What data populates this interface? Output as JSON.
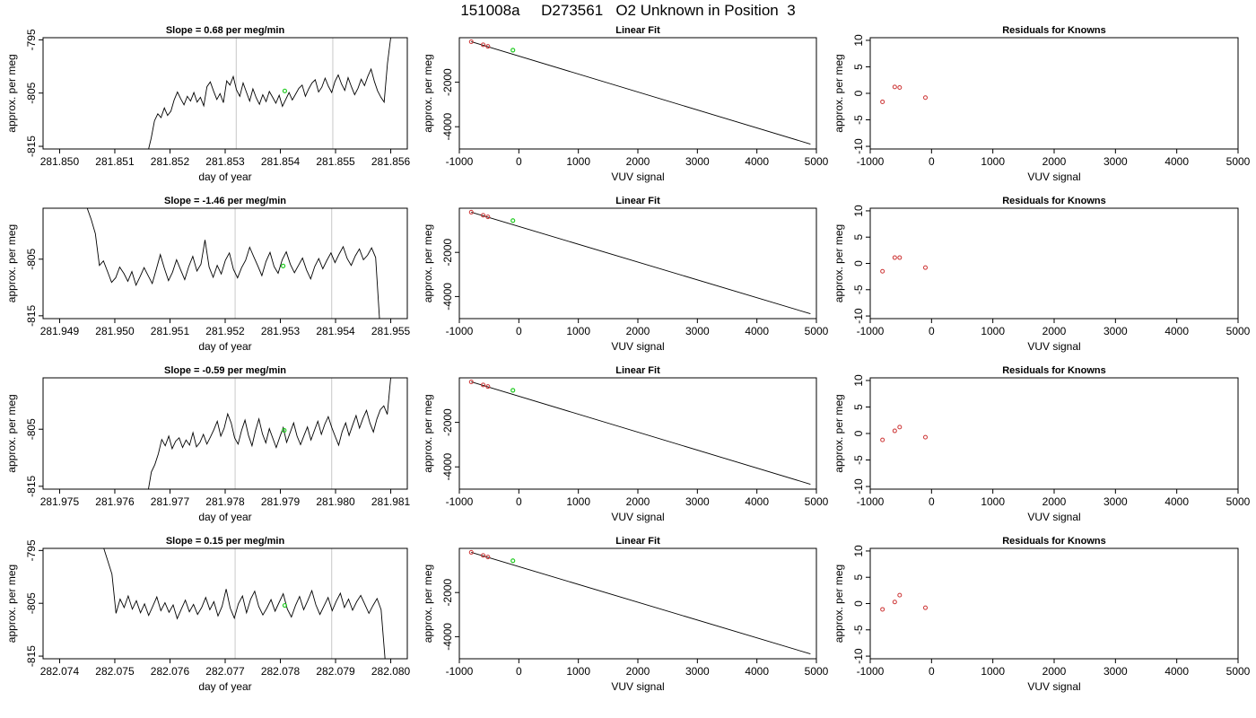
{
  "main_title": "151008a     D273561   O2 Unknown in Position  3",
  "chart_data": [
    {
      "type": "line",
      "title": "Slope =  0.68  per meg/min",
      "xlabel": "day of year",
      "ylabel": "approx. per meg",
      "xlim": [
        281.8497,
        281.8563
      ],
      "ylim": [
        -815.5,
        -794.6
      ],
      "xticks": [
        "281.850",
        "281.851",
        "281.852",
        "281.853",
        "281.854",
        "281.855",
        "281.856"
      ],
      "xtick_values": [
        281.85,
        281.851,
        281.852,
        281.853,
        281.854,
        281.855,
        281.856
      ],
      "yticks": [
        "-815",
        "-805",
        "-795"
      ],
      "ytick_values": [
        -815,
        -805,
        -795
      ],
      "vlines": [
        281.8532,
        281.85495
      ],
      "series": [
        {
          "x_start": 281.8516,
          "x_end": 281.856,
          "start": -816,
          "values": [
            -816,
            -813.5,
            -810.2,
            -808.9,
            -809.6,
            -807.8,
            -809.2,
            -808.4,
            -806.3,
            -804.8,
            -806.1,
            -807.2,
            -805.6,
            -806.5,
            -804.9,
            -806.7,
            -805.8,
            -807.4,
            -803.8,
            -802.9,
            -804.6,
            -806.2,
            -805.1,
            -806.8,
            -802.7,
            -803.5,
            -801.9,
            -804.4,
            -805.6,
            -803.1,
            -804.8,
            -806.5,
            -804.2,
            -805.9,
            -807.1,
            -805.3,
            -806.6,
            -804.7,
            -805.8,
            -806.9,
            -805.4,
            -807.5,
            -806.2,
            -804.9,
            -806.3,
            -805.2,
            -804.1,
            -803.5,
            -805.6,
            -804.2,
            -803.1,
            -802.5,
            -804.8,
            -803.9,
            -802.2,
            -803.7,
            -804.9,
            -802.8,
            -801.6,
            -803.3,
            -804.5,
            -802.1,
            -803.8,
            -805.3,
            -804.1,
            -802.4,
            -803.6,
            -801.9,
            -800.5,
            -802.8,
            -804.6,
            -805.8,
            -806.7,
            -799.4,
            -794.6
          ]
        }
      ],
      "markers": [
        {
          "x": 281.85408,
          "y": -804.6,
          "color": "#22cc22"
        }
      ]
    },
    {
      "type": "line",
      "title": "Linear Fit",
      "xlabel": "VUV signal",
      "ylabel": "approx. per meg",
      "xlim": [
        -1000,
        5000
      ],
      "ylim": [
        -5000,
        0
      ],
      "xticks": [
        "-1000",
        "0",
        "1000",
        "2000",
        "3000",
        "4000",
        "5000"
      ],
      "xtick_values": [
        -1000,
        0,
        1000,
        2000,
        3000,
        4000,
        5000
      ],
      "yticks": [
        "-4000",
        "-2000"
      ],
      "ytick_values": [
        -4000,
        -2000
      ],
      "fit_line": [
        [
          -800,
          -180
        ],
        [
          4900,
          -4780
        ]
      ],
      "points_known": [
        [
          -800,
          -180
        ],
        [
          -600,
          -320
        ],
        [
          -520,
          -390
        ]
      ],
      "points_unknown": [
        [
          -100,
          -560
        ]
      ],
      "colors": {
        "known": "#cc3333",
        "unknown": "#22cc22"
      }
    },
    {
      "type": "scatter",
      "title": "Residuals for Knowns",
      "xlabel": "VUV signal",
      "ylabel": "approx. per meg",
      "xlim": [
        -1000,
        5000
      ],
      "ylim": [
        -10.5,
        10.5
      ],
      "xticks": [
        "-1000",
        "0",
        "1000",
        "2000",
        "3000",
        "4000",
        "5000"
      ],
      "xtick_values": [
        -1000,
        0,
        1000,
        2000,
        3000,
        4000,
        5000
      ],
      "yticks": [
        "-10",
        "-5",
        "0",
        "5",
        "10"
      ],
      "ytick_values": [
        -10,
        -5,
        0,
        5,
        10
      ],
      "points": [
        [
          -800,
          -1.6
        ],
        [
          -600,
          1.2
        ],
        [
          -520,
          1.1
        ],
        [
          -100,
          -0.8
        ]
      ],
      "color": "#cc3333"
    },
    {
      "type": "line",
      "title": "Slope =  -1.46  per meg/min",
      "xlabel": "day of year",
      "ylabel": "approx. per meg",
      "xlim": [
        281.9487,
        281.9553
      ],
      "ylim": [
        -815.5,
        -796
      ],
      "xticks": [
        "281.949",
        "281.950",
        "281.951",
        "281.952",
        "281.953",
        "281.954",
        "281.955"
      ],
      "xtick_values": [
        281.949,
        281.95,
        281.951,
        281.952,
        281.953,
        281.954,
        281.955
      ],
      "yticks": [
        "-815",
        "-805"
      ],
      "ytick_values": [
        -815,
        -805
      ],
      "vlines": [
        281.95218,
        281.95393
      ],
      "series": [
        {
          "x_start": 281.9495,
          "x_end": 281.9548,
          "start": -796,
          "values": [
            -796,
            -798,
            -800.5,
            -806.1,
            -805.3,
            -807.2,
            -809.1,
            -808.3,
            -806.4,
            -807.5,
            -808.9,
            -807.2,
            -809.6,
            -808.1,
            -806.5,
            -807.9,
            -809.3,
            -806.8,
            -804.2,
            -806.6,
            -808.8,
            -807.3,
            -805.1,
            -806.9,
            -808.6,
            -806.3,
            -804.5,
            -807.1,
            -805.9,
            -801.6,
            -806.4,
            -808.2,
            -806.1,
            -807.6,
            -805.2,
            -803.9,
            -806.8,
            -808.3,
            -806.5,
            -805.2,
            -802.9,
            -804.6,
            -806.2,
            -807.9,
            -805.4,
            -803.8,
            -806.3,
            -807.5,
            -805.1,
            -803.7,
            -805.9,
            -807.4,
            -806.1,
            -804.8,
            -806.9,
            -808.5,
            -806.3,
            -804.9,
            -806.7,
            -805.2,
            -803.9,
            -805.6,
            -804.1,
            -802.8,
            -804.9,
            -806.1,
            -804.4,
            -803.2,
            -805.1,
            -804.3,
            -803.0,
            -804.7,
            -816
          ]
        }
      ],
      "markers": [
        {
          "x": 281.95305,
          "y": -806.2,
          "color": "#22cc22"
        }
      ]
    },
    {
      "type": "line",
      "title": "Linear Fit",
      "xlabel": "VUV signal",
      "ylabel": "approx. per meg",
      "xlim": [
        -1000,
        5000
      ],
      "ylim": [
        -5000,
        0
      ],
      "xticks": [
        "-1000",
        "0",
        "1000",
        "2000",
        "3000",
        "4000",
        "5000"
      ],
      "xtick_values": [
        -1000,
        0,
        1000,
        2000,
        3000,
        4000,
        5000
      ],
      "yticks": [
        "-4000",
        "-2000"
      ],
      "ytick_values": [
        -4000,
        -2000
      ],
      "fit_line": [
        [
          -800,
          -180
        ],
        [
          4900,
          -4780
        ]
      ],
      "points_known": [
        [
          -800,
          -180
        ],
        [
          -600,
          -320
        ],
        [
          -520,
          -390
        ]
      ],
      "points_unknown": [
        [
          -100,
          -560
        ]
      ],
      "colors": {
        "known": "#cc3333",
        "unknown": "#22cc22"
      }
    },
    {
      "type": "scatter",
      "title": "Residuals for Knowns",
      "xlabel": "VUV signal",
      "ylabel": "approx. per meg",
      "xlim": [
        -1000,
        5000
      ],
      "ylim": [
        -10.5,
        10.5
      ],
      "xticks": [
        "-1000",
        "0",
        "1000",
        "2000",
        "3000",
        "4000",
        "5000"
      ],
      "xtick_values": [
        -1000,
        0,
        1000,
        2000,
        3000,
        4000,
        5000
      ],
      "yticks": [
        "-10",
        "-5",
        "0",
        "5",
        "10"
      ],
      "ytick_values": [
        -10,
        -5,
        0,
        5,
        10
      ],
      "points": [
        [
          -800,
          -1.5
        ],
        [
          -600,
          1.1
        ],
        [
          -520,
          1.1
        ],
        [
          -100,
          -0.8
        ]
      ],
      "color": "#cc3333"
    },
    {
      "type": "line",
      "title": "Slope =  -0.59  per meg/min",
      "xlabel": "day of year",
      "ylabel": "approx. per meg",
      "xlim": [
        281.9747,
        281.9813
      ],
      "ylim": [
        -815.5,
        -796
      ],
      "xticks": [
        "281.975",
        "281.976",
        "281.977",
        "281.978",
        "281.979",
        "281.980",
        "281.981"
      ],
      "xtick_values": [
        281.975,
        281.976,
        281.977,
        281.978,
        281.979,
        281.98,
        281.981
      ],
      "yticks": [
        "-815",
        "-805"
      ],
      "ytick_values": [
        -815,
        -805
      ],
      "vlines": [
        281.97818,
        281.97993
      ],
      "series": [
        {
          "x_start": 281.9766,
          "x_end": 281.981,
          "start": -816,
          "values": [
            -816,
            -812.5,
            -811.2,
            -809.3,
            -806.8,
            -807.9,
            -806.2,
            -808.4,
            -807.1,
            -806.5,
            -808.2,
            -806.9,
            -807.8,
            -805.6,
            -808.1,
            -807.3,
            -805.9,
            -807.6,
            -806.4,
            -805.1,
            -803.6,
            -806.2,
            -804.8,
            -802.3,
            -803.9,
            -806.5,
            -807.6,
            -805.2,
            -803.4,
            -806.1,
            -807.9,
            -805.3,
            -803.2,
            -805.8,
            -807.4,
            -804.9,
            -806.6,
            -808.2,
            -806.4,
            -804.7,
            -807.3,
            -805.6,
            -803.9,
            -806.2,
            -807.7,
            -806.1,
            -804.6,
            -806.9,
            -805.2,
            -803.6,
            -805.9,
            -804.1,
            -802.8,
            -804.7,
            -806.3,
            -807.8,
            -805.4,
            -803.9,
            -806.1,
            -804.3,
            -802.6,
            -804.8,
            -803.1,
            -801.7,
            -803.9,
            -805.5,
            -803.2,
            -801.6,
            -800.9,
            -802.4,
            -796
          ]
        }
      ],
      "markers": [
        {
          "x": 281.97907,
          "y": -805.2,
          "color": "#22cc22"
        }
      ]
    },
    {
      "type": "line",
      "title": "Linear Fit",
      "xlabel": "VUV signal",
      "ylabel": "approx. per meg",
      "xlim": [
        -1000,
        5000
      ],
      "ylim": [
        -5000,
        0
      ],
      "xticks": [
        "-1000",
        "0",
        "1000",
        "2000",
        "3000",
        "4000",
        "5000"
      ],
      "xtick_values": [
        -1000,
        0,
        1000,
        2000,
        3000,
        4000,
        5000
      ],
      "yticks": [
        "-4000",
        "-2000"
      ],
      "ytick_values": [
        -4000,
        -2000
      ],
      "fit_line": [
        [
          -800,
          -180
        ],
        [
          4900,
          -4780
        ]
      ],
      "points_known": [
        [
          -800,
          -180
        ],
        [
          -600,
          -320
        ],
        [
          -520,
          -390
        ]
      ],
      "points_unknown": [
        [
          -100,
          -560
        ]
      ],
      "colors": {
        "known": "#cc3333",
        "unknown": "#22cc22"
      }
    },
    {
      "type": "scatter",
      "title": "Residuals for Knowns",
      "xlabel": "VUV signal",
      "ylabel": "approx. per meg",
      "xlim": [
        -1000,
        5000
      ],
      "ylim": [
        -10.5,
        10.5
      ],
      "xticks": [
        "-1000",
        "0",
        "1000",
        "2000",
        "3000",
        "4000",
        "5000"
      ],
      "xtick_values": [
        -1000,
        0,
        1000,
        2000,
        3000,
        4000,
        5000
      ],
      "yticks": [
        "-10",
        "-5",
        "0",
        "5",
        "10"
      ],
      "ytick_values": [
        -10,
        -5,
        0,
        5,
        10
      ],
      "points": [
        [
          -800,
          -1.2
        ],
        [
          -600,
          0.5
        ],
        [
          -520,
          1.2
        ],
        [
          -100,
          -0.7
        ]
      ],
      "color": "#cc3333"
    },
    {
      "type": "line",
      "title": "Slope =  0.15  per meg/min",
      "xlabel": "day of year",
      "ylabel": "approx. per meg",
      "xlim": [
        282.0737,
        282.0803
      ],
      "ylim": [
        -815.5,
        -794.6
      ],
      "xticks": [
        "282.074",
        "282.075",
        "282.076",
        "282.077",
        "282.078",
        "282.079",
        "282.080"
      ],
      "xtick_values": [
        282.074,
        282.075,
        282.076,
        282.077,
        282.078,
        282.079,
        282.08
      ],
      "yticks": [
        "-815",
        "-805",
        "-795"
      ],
      "ytick_values": [
        -815,
        -805,
        -795
      ],
      "vlines": [
        282.07718,
        282.07893
      ],
      "series": [
        {
          "x_start": 282.0748,
          "x_end": 282.0799,
          "start": -794.6,
          "values": [
            -794.6,
            -797,
            -799.5,
            -806.9,
            -804.2,
            -805.8,
            -803.6,
            -806.1,
            -804.5,
            -806.8,
            -805.1,
            -807.3,
            -805.6,
            -803.8,
            -806.4,
            -804.9,
            -806.7,
            -805.3,
            -807.9,
            -806.1,
            -804.4,
            -806.6,
            -805.2,
            -807.1,
            -805.8,
            -803.9,
            -806.2,
            -804.7,
            -807.4,
            -805.6,
            -802.3,
            -805.9,
            -807.8,
            -805.1,
            -803.6,
            -806.8,
            -804.2,
            -802.7,
            -805.6,
            -807.2,
            -805.9,
            -804.3,
            -806.5,
            -804.8,
            -803.2,
            -806.1,
            -807.6,
            -805.4,
            -803.7,
            -806.2,
            -804.5,
            -802.6,
            -805.3,
            -807.1,
            -805.5,
            -803.9,
            -806.4,
            -804.6,
            -803.1,
            -805.8,
            -804.2,
            -806.3,
            -804.7,
            -803.5,
            -805.2,
            -806.9,
            -805.4,
            -804.1,
            -806.2,
            -816
          ]
        }
      ],
      "markers": [
        {
          "x": 282.07808,
          "y": -805.4,
          "color": "#22cc22"
        }
      ]
    },
    {
      "type": "line",
      "title": "Linear Fit",
      "xlabel": "VUV signal",
      "ylabel": "approx. per meg",
      "xlim": [
        -1000,
        5000
      ],
      "ylim": [
        -5000,
        0
      ],
      "xticks": [
        "-1000",
        "0",
        "1000",
        "2000",
        "3000",
        "4000",
        "5000"
      ],
      "xtick_values": [
        -1000,
        0,
        1000,
        2000,
        3000,
        4000,
        5000
      ],
      "yticks": [
        "-4000",
        "-2000"
      ],
      "ytick_values": [
        -4000,
        -2000
      ],
      "fit_line": [
        [
          -800,
          -180
        ],
        [
          4900,
          -4780
        ]
      ],
      "points_known": [
        [
          -800,
          -180
        ],
        [
          -600,
          -320
        ],
        [
          -520,
          -390
        ]
      ],
      "points_unknown": [
        [
          -100,
          -560
        ]
      ],
      "colors": {
        "known": "#cc3333",
        "unknown": "#22cc22"
      }
    },
    {
      "type": "scatter",
      "title": "Residuals for Knowns",
      "xlabel": "VUV signal",
      "ylabel": "approx. per meg",
      "xlim": [
        -1000,
        5000
      ],
      "ylim": [
        -10.5,
        10.5
      ],
      "xticks": [
        "-1000",
        "0",
        "1000",
        "2000",
        "3000",
        "4000",
        "5000"
      ],
      "xtick_values": [
        -1000,
        0,
        1000,
        2000,
        3000,
        4000,
        5000
      ],
      "yticks": [
        "-10",
        "-5",
        "0",
        "5",
        "10"
      ],
      "ytick_values": [
        -10,
        -5,
        0,
        5,
        10
      ],
      "points": [
        [
          -800,
          -1.1
        ],
        [
          -600,
          0.3
        ],
        [
          -520,
          1.6
        ],
        [
          -100,
          -0.8
        ]
      ],
      "color": "#cc3333"
    }
  ]
}
